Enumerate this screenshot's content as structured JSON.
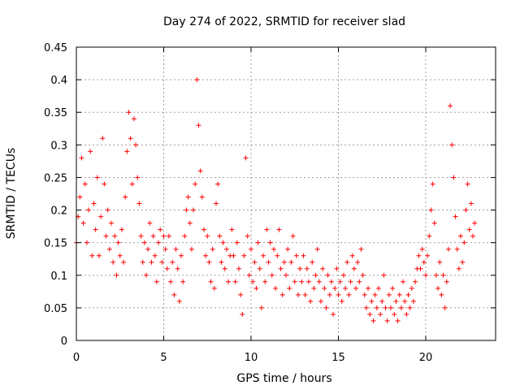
{
  "chart_data": {
    "type": "scatter",
    "title": "Day 274 of 2022, SRMTID for receiver slad",
    "xlabel": "GPS time / hours",
    "ylabel": "SRMTID / TECUs",
    "xlim": [
      0,
      24
    ],
    "ylim": [
      0,
      0.45
    ],
    "xticks": [
      0,
      5,
      10,
      15,
      20
    ],
    "xtick_labels": [
      "0",
      "5",
      "10",
      "15",
      "20"
    ],
    "yticks": [
      0,
      0.05,
      0.1,
      0.15,
      0.2,
      0.25,
      0.3,
      0.35,
      0.4,
      0.45
    ],
    "ytick_labels": [
      "0",
      "0.05",
      "0.1",
      "0.15",
      "0.2",
      "0.25",
      "0.3",
      "0.35",
      "0.4",
      "0.45"
    ],
    "grid": true,
    "marker": "+",
    "color": "#ff0000",
    "series": [
      {
        "name": "SRMTID",
        "points": [
          [
            0.0,
            0.15
          ],
          [
            0.1,
            0.19
          ],
          [
            0.2,
            0.22
          ],
          [
            0.3,
            0.28
          ],
          [
            0.4,
            0.18
          ],
          [
            0.5,
            0.24
          ],
          [
            0.6,
            0.15
          ],
          [
            0.7,
            0.2
          ],
          [
            0.8,
            0.29
          ],
          [
            0.9,
            0.13
          ],
          [
            1.0,
            0.21
          ],
          [
            1.1,
            0.17
          ],
          [
            1.2,
            0.25
          ],
          [
            1.3,
            0.13
          ],
          [
            1.4,
            0.19
          ],
          [
            1.5,
            0.31
          ],
          [
            1.6,
            0.24
          ],
          [
            1.7,
            0.16
          ],
          [
            1.8,
            0.2
          ],
          [
            1.9,
            0.14
          ],
          [
            2.0,
            0.18
          ],
          [
            2.1,
            0.12
          ],
          [
            2.2,
            0.16
          ],
          [
            2.3,
            0.1
          ],
          [
            2.4,
            0.15
          ],
          [
            2.5,
            0.13
          ],
          [
            2.6,
            0.17
          ],
          [
            2.7,
            0.12
          ],
          [
            2.8,
            0.22
          ],
          [
            2.9,
            0.29
          ],
          [
            3.0,
            0.35
          ],
          [
            3.1,
            0.31
          ],
          [
            3.2,
            0.24
          ],
          [
            3.3,
            0.34
          ],
          [
            3.4,
            0.3
          ],
          [
            3.5,
            0.25
          ],
          [
            3.6,
            0.21
          ],
          [
            3.7,
            0.16
          ],
          [
            3.8,
            0.12
          ],
          [
            3.9,
            0.15
          ],
          [
            4.0,
            0.1
          ],
          [
            4.1,
            0.14
          ],
          [
            4.2,
            0.18
          ],
          [
            4.3,
            0.12
          ],
          [
            4.4,
            0.16
          ],
          [
            4.5,
            0.13
          ],
          [
            4.6,
            0.09
          ],
          [
            4.7,
            0.15
          ],
          [
            4.8,
            0.17
          ],
          [
            4.9,
            0.12
          ],
          [
            5.0,
            0.16
          ],
          [
            5.1,
            0.14
          ],
          [
            5.2,
            0.11
          ],
          [
            5.3,
            0.16
          ],
          [
            5.4,
            0.09
          ],
          [
            5.5,
            0.12
          ],
          [
            5.6,
            0.07
          ],
          [
            5.7,
            0.14
          ],
          [
            5.8,
            0.11
          ],
          [
            5.9,
            0.06
          ],
          [
            6.0,
            0.13
          ],
          [
            6.1,
            0.09
          ],
          [
            6.2,
            0.16
          ],
          [
            6.3,
            0.2
          ],
          [
            6.4,
            0.22
          ],
          [
            6.5,
            0.18
          ],
          [
            6.6,
            0.14
          ],
          [
            6.7,
            0.2
          ],
          [
            6.8,
            0.24
          ],
          [
            6.9,
            0.4
          ],
          [
            7.0,
            0.33
          ],
          [
            7.1,
            0.26
          ],
          [
            7.2,
            0.22
          ],
          [
            7.3,
            0.17
          ],
          [
            7.4,
            0.13
          ],
          [
            7.5,
            0.16
          ],
          [
            7.6,
            0.12
          ],
          [
            7.7,
            0.09
          ],
          [
            7.8,
            0.14
          ],
          [
            7.9,
            0.08
          ],
          [
            8.0,
            0.21
          ],
          [
            8.1,
            0.24
          ],
          [
            8.2,
            0.16
          ],
          [
            8.3,
            0.12
          ],
          [
            8.4,
            0.15
          ],
          [
            8.5,
            0.11
          ],
          [
            8.6,
            0.14
          ],
          [
            8.7,
            0.09
          ],
          [
            8.8,
            0.13
          ],
          [
            8.9,
            0.17
          ],
          [
            9.0,
            0.13
          ],
          [
            9.1,
            0.09
          ],
          [
            9.2,
            0.15
          ],
          [
            9.3,
            0.11
          ],
          [
            9.4,
            0.07
          ],
          [
            9.5,
            0.04
          ],
          [
            9.6,
            0.13
          ],
          [
            9.7,
            0.28
          ],
          [
            9.8,
            0.16
          ],
          [
            9.9,
            0.1
          ],
          [
            10.0,
            0.14
          ],
          [
            10.1,
            0.09
          ],
          [
            10.2,
            0.12
          ],
          [
            10.3,
            0.08
          ],
          [
            10.4,
            0.15
          ],
          [
            10.5,
            0.11
          ],
          [
            10.6,
            0.05
          ],
          [
            10.7,
            0.13
          ],
          [
            10.8,
            0.09
          ],
          [
            10.9,
            0.17
          ],
          [
            11.0,
            0.12
          ],
          [
            11.1,
            0.15
          ],
          [
            11.2,
            0.1
          ],
          [
            11.3,
            0.14
          ],
          [
            11.4,
            0.08
          ],
          [
            11.5,
            0.13
          ],
          [
            11.6,
            0.17
          ],
          [
            11.7,
            0.11
          ],
          [
            11.8,
            0.07
          ],
          [
            11.9,
            0.12
          ],
          [
            12.0,
            0.1
          ],
          [
            12.1,
            0.14
          ],
          [
            12.2,
            0.08
          ],
          [
            12.3,
            0.12
          ],
          [
            12.4,
            0.16
          ],
          [
            12.5,
            0.09
          ],
          [
            12.6,
            0.13
          ],
          [
            12.7,
            0.07
          ],
          [
            12.8,
            0.11
          ],
          [
            12.9,
            0.09
          ],
          [
            13.0,
            0.13
          ],
          [
            13.1,
            0.07
          ],
          [
            13.2,
            0.11
          ],
          [
            13.3,
            0.09
          ],
          [
            13.4,
            0.06
          ],
          [
            13.5,
            0.12
          ],
          [
            13.6,
            0.08
          ],
          [
            13.7,
            0.1
          ],
          [
            13.8,
            0.14
          ],
          [
            13.9,
            0.09
          ],
          [
            14.0,
            0.06
          ],
          [
            14.1,
            0.11
          ],
          [
            14.2,
            0.08
          ],
          [
            14.3,
            0.05
          ],
          [
            14.4,
            0.1
          ],
          [
            14.5,
            0.07
          ],
          [
            14.6,
            0.09
          ],
          [
            14.7,
            0.04
          ],
          [
            14.8,
            0.08
          ],
          [
            14.9,
            0.11
          ],
          [
            15.0,
            0.07
          ],
          [
            15.1,
            0.09
          ],
          [
            15.2,
            0.06
          ],
          [
            15.3,
            0.1
          ],
          [
            15.4,
            0.08
          ],
          [
            15.5,
            0.12
          ],
          [
            15.6,
            0.07
          ],
          [
            15.7,
            0.09
          ],
          [
            15.8,
            0.13
          ],
          [
            15.9,
            0.11
          ],
          [
            16.0,
            0.08
          ],
          [
            16.1,
            0.12
          ],
          [
            16.2,
            0.09
          ],
          [
            16.3,
            0.14
          ],
          [
            16.4,
            0.1
          ],
          [
            16.5,
            0.07
          ],
          [
            16.6,
            0.05
          ],
          [
            16.7,
            0.08
          ],
          [
            16.8,
            0.04
          ],
          [
            16.9,
            0.06
          ],
          [
            17.0,
            0.03
          ],
          [
            17.1,
            0.07
          ],
          [
            17.2,
            0.05
          ],
          [
            17.3,
            0.08
          ],
          [
            17.4,
            0.04
          ],
          [
            17.5,
            0.06
          ],
          [
            17.6,
            0.1
          ],
          [
            17.7,
            0.05
          ],
          [
            17.8,
            0.03
          ],
          [
            17.9,
            0.07
          ],
          [
            18.0,
            0.05
          ],
          [
            18.1,
            0.08
          ],
          [
            18.2,
            0.04
          ],
          [
            18.3,
            0.06
          ],
          [
            18.4,
            0.03
          ],
          [
            18.5,
            0.07
          ],
          [
            18.6,
            0.05
          ],
          [
            18.7,
            0.09
          ],
          [
            18.8,
            0.06
          ],
          [
            18.9,
            0.04
          ],
          [
            19.0,
            0.07
          ],
          [
            19.1,
            0.05
          ],
          [
            19.2,
            0.08
          ],
          [
            19.3,
            0.06
          ],
          [
            19.4,
            0.09
          ],
          [
            19.5,
            0.11
          ],
          [
            19.6,
            0.13
          ],
          [
            19.7,
            0.11
          ],
          [
            19.8,
            0.14
          ],
          [
            19.9,
            0.12
          ],
          [
            20.0,
            0.1
          ],
          [
            20.1,
            0.13
          ],
          [
            20.2,
            0.16
          ],
          [
            20.3,
            0.2
          ],
          [
            20.4,
            0.24
          ],
          [
            20.5,
            0.18
          ],
          [
            20.6,
            0.1
          ],
          [
            20.7,
            0.08
          ],
          [
            20.8,
            0.12
          ],
          [
            20.9,
            0.07
          ],
          [
            21.0,
            0.1
          ],
          [
            21.1,
            0.05
          ],
          [
            21.2,
            0.09
          ],
          [
            21.3,
            0.14
          ],
          [
            21.4,
            0.36
          ],
          [
            21.5,
            0.3
          ],
          [
            21.6,
            0.25
          ],
          [
            21.7,
            0.19
          ],
          [
            21.8,
            0.14
          ],
          [
            21.9,
            0.11
          ],
          [
            22.0,
            0.16
          ],
          [
            22.1,
            0.12
          ],
          [
            22.2,
            0.15
          ],
          [
            22.3,
            0.2
          ],
          [
            22.4,
            0.24
          ],
          [
            22.5,
            0.17
          ],
          [
            22.6,
            0.21
          ],
          [
            22.7,
            0.16
          ],
          [
            22.8,
            0.18
          ]
        ]
      }
    ]
  }
}
